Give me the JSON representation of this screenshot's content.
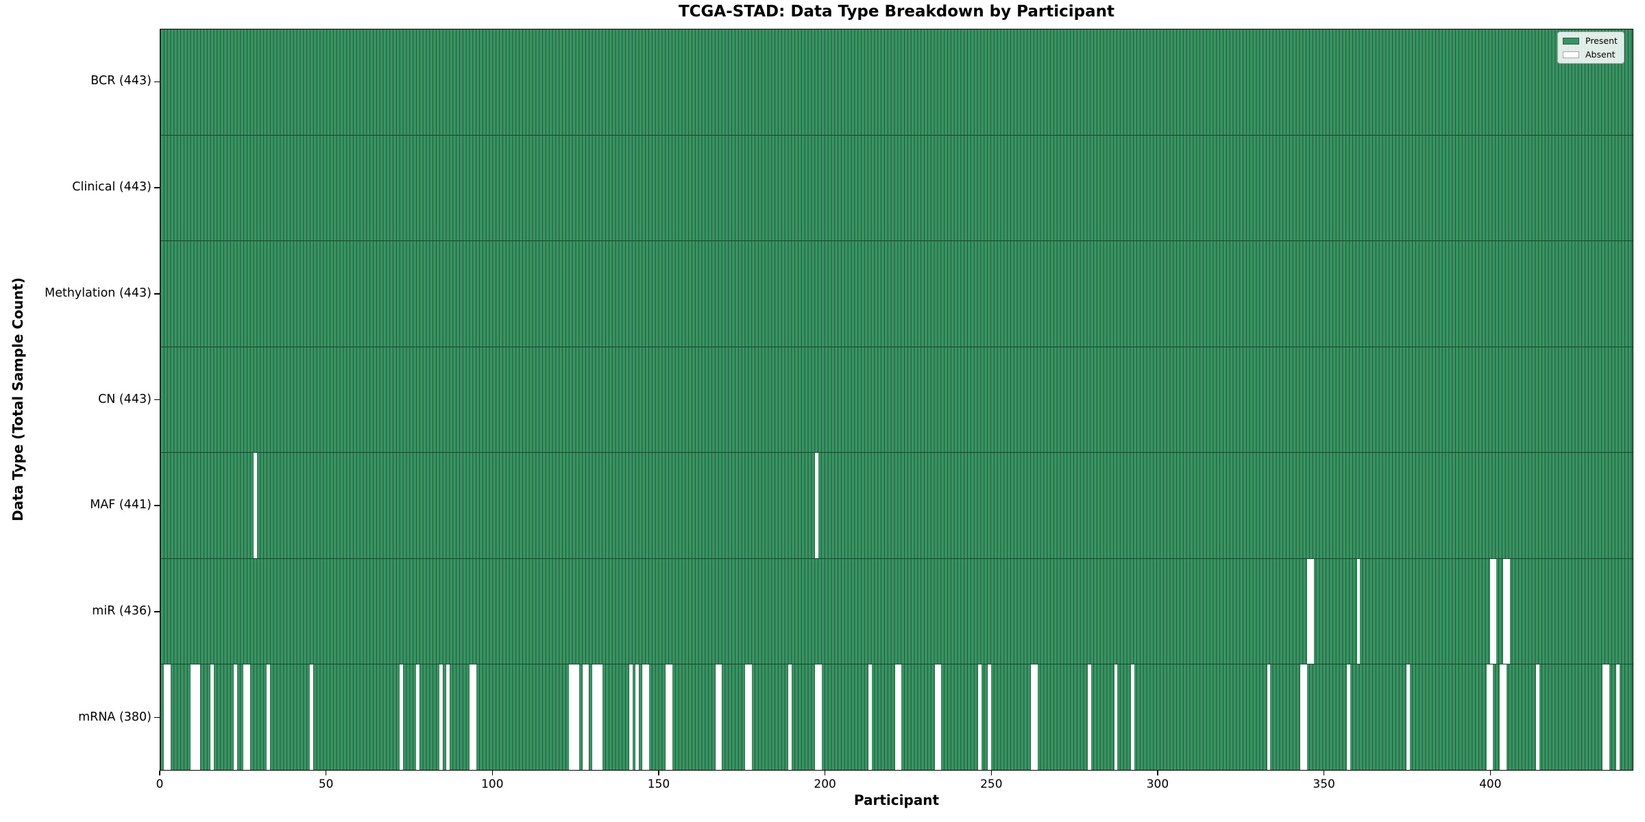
{
  "chart_data": {
    "type": "heatmap",
    "title": "TCGA-STAD: Data Type Breakdown by Participant",
    "xlabel": "Participant",
    "ylabel": "Data Type (Total Sample Count)",
    "x_ticks": [
      0,
      50,
      100,
      150,
      200,
      250,
      300,
      350,
      400
    ],
    "x_range": [
      0,
      443
    ],
    "n_participants": 443,
    "grid": false,
    "legend_position": "upper right",
    "legend": [
      {
        "name": "present",
        "label": "Present",
        "color": "#389463"
      },
      {
        "name": "absent",
        "label": "Absent",
        "color": "#ffffff"
      }
    ],
    "colors": {
      "present": "#389463",
      "absent": "#ffffff",
      "cell_edge": "rgba(8,24,14,0.5)",
      "row_divider": "rgba(8,24,14,0.65)",
      "spine": "#000000"
    },
    "rows": [
      {
        "data_type": "BCR",
        "label": "BCR (443)",
        "present_count": 443,
        "absent_participants": []
      },
      {
        "data_type": "Clinical",
        "label": "Clinical (443)",
        "present_count": 443,
        "absent_participants": []
      },
      {
        "data_type": "Methylation",
        "label": "Methylation (443)",
        "present_count": 443,
        "absent_participants": []
      },
      {
        "data_type": "CN",
        "label": "CN (443)",
        "present_count": 443,
        "absent_participants": []
      },
      {
        "data_type": "MAF",
        "label": "MAF (441)",
        "present_count": 441,
        "absent_participants": [
          28,
          197
        ]
      },
      {
        "data_type": "miR",
        "label": "miR (436)",
        "present_count": 436,
        "absent_participants": [
          345,
          346,
          360,
          400,
          401,
          404,
          405
        ]
      },
      {
        "data_type": "mRNA",
        "label": "mRNA (380)",
        "present_count": 380,
        "absent_participants": [
          1,
          2,
          9,
          10,
          11,
          15,
          22,
          25,
          26,
          32,
          45,
          72,
          77,
          84,
          86,
          93,
          94,
          123,
          124,
          125,
          127,
          128,
          130,
          131,
          132,
          141,
          143,
          145,
          146,
          152,
          153,
          167,
          168,
          176,
          177,
          189,
          197,
          198,
          213,
          221,
          222,
          233,
          234,
          246,
          249,
          262,
          263,
          279,
          287,
          292,
          333,
          343,
          344,
          357,
          375,
          399,
          400,
          403,
          404,
          414,
          434,
          435,
          438
        ]
      }
    ]
  }
}
